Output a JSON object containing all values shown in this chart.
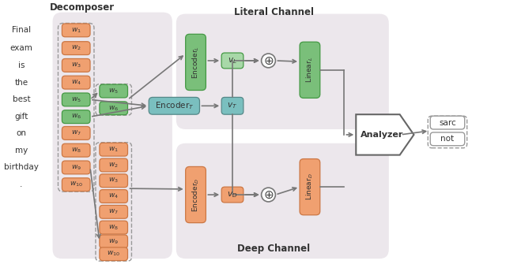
{
  "orange_color": "#f0a070",
  "green_color": "#7abf7a",
  "teal_color": "#7abfbf",
  "arrow_color": "#777777",
  "channel_bg": "#ece7ec",
  "decomposer_bg": "#ece7ec",
  "sentence": [
    "Final",
    "exam",
    "is",
    "the",
    "best",
    "gift",
    "on",
    "my",
    "birthday",
    "."
  ],
  "main_words": [
    "$w_1$",
    "$w_2$",
    "$w_3$",
    "$w_4$",
    "$w_5$",
    "$w_6$",
    "$w_7$",
    "$w_8$",
    "$w_9$",
    "$w_{10}$"
  ],
  "main_colors": [
    "orange",
    "orange",
    "orange",
    "orange",
    "green",
    "green",
    "orange",
    "orange",
    "orange",
    "orange"
  ],
  "top_group": [
    "$w_5$",
    "$w_6$"
  ],
  "bot_group": [
    "$w_1$",
    "$w_2$",
    "$w_3$",
    "$w_4$",
    "$w_7$",
    "$w_8$",
    "$w_9$",
    "$w_{10}$"
  ]
}
